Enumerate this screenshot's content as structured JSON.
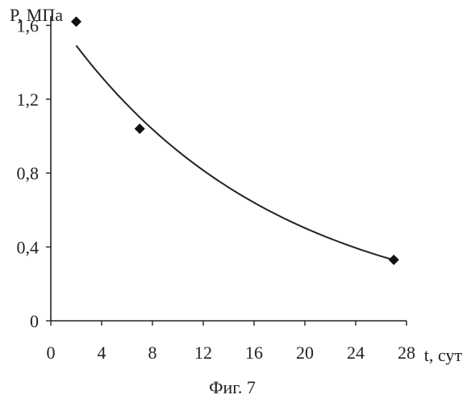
{
  "chart_data": {
    "type": "scatter",
    "ylabel": "P, МПа",
    "xlabel": "t, сут",
    "caption": "Фиг. 7",
    "xlim": [
      0,
      28
    ],
    "ylim": [
      0,
      1.6
    ],
    "x_ticks": [
      "0",
      "4",
      "8",
      "12",
      "16",
      "20",
      "24",
      "28"
    ],
    "y_ticks": [
      "0",
      "0,4",
      "0,8",
      "1,2",
      "1,6"
    ],
    "x_tick_values": [
      0,
      4,
      8,
      12,
      16,
      20,
      24,
      28
    ],
    "y_tick_values": [
      0,
      0.4,
      0.8,
      1.2,
      1.6
    ],
    "points": [
      {
        "x": 2,
        "y": 1.62
      },
      {
        "x": 7,
        "y": 1.04
      },
      {
        "x": 27,
        "y": 0.33
      }
    ],
    "trendline": {
      "type": "exponential",
      "a": 1.682,
      "b": -0.0604,
      "x_range": [
        2,
        27
      ]
    },
    "grid": false,
    "legend": "none"
  }
}
